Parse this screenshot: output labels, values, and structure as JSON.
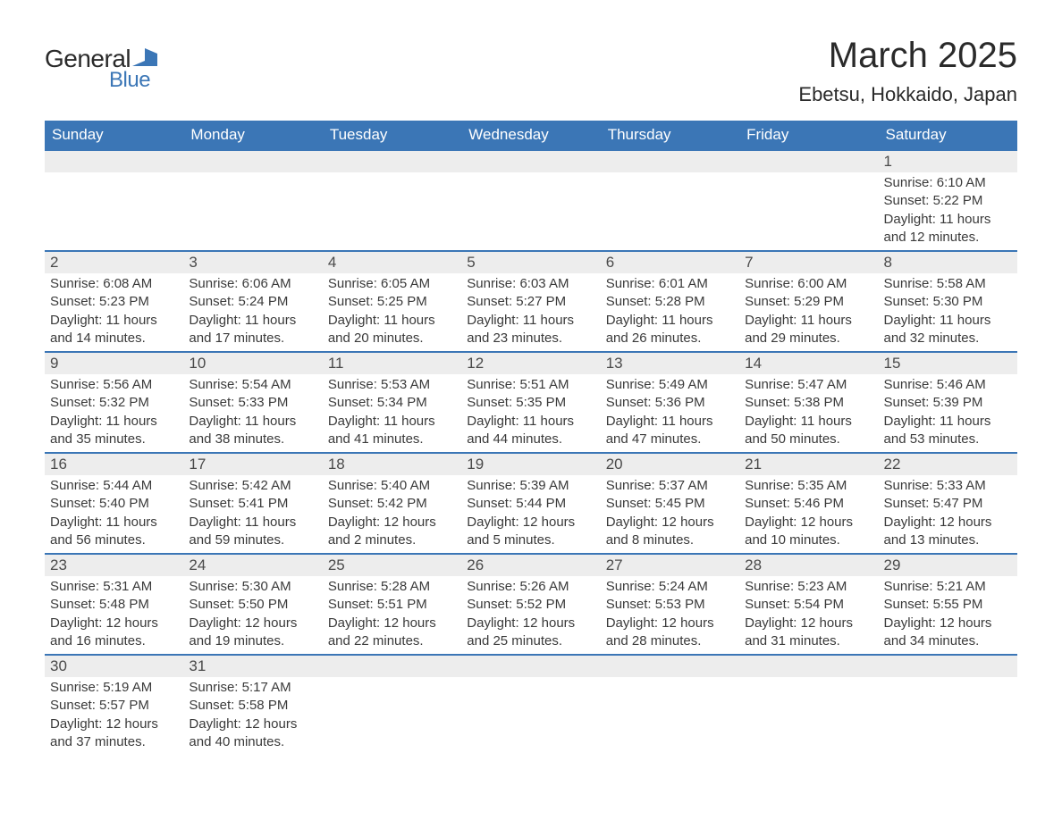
{
  "brand": {
    "text_general": "General",
    "text_blue": "Blue",
    "icon_color": "#3b76b6"
  },
  "title": "March 2025",
  "location": "Ebetsu, Hokkaido, Japan",
  "colors": {
    "header_bg": "#3b76b6",
    "header_fg": "#ffffff",
    "daynum_bg": "#ededed",
    "row_border": "#3b76b6",
    "text": "#333333"
  },
  "columns": [
    "Sunday",
    "Monday",
    "Tuesday",
    "Wednesday",
    "Thursday",
    "Friday",
    "Saturday"
  ],
  "weeks": [
    [
      null,
      null,
      null,
      null,
      null,
      null,
      {
        "day": "1",
        "sunrise": "Sunrise: 6:10 AM",
        "sunset": "Sunset: 5:22 PM",
        "dl1": "Daylight: 11 hours",
        "dl2": "and 12 minutes."
      }
    ],
    [
      {
        "day": "2",
        "sunrise": "Sunrise: 6:08 AM",
        "sunset": "Sunset: 5:23 PM",
        "dl1": "Daylight: 11 hours",
        "dl2": "and 14 minutes."
      },
      {
        "day": "3",
        "sunrise": "Sunrise: 6:06 AM",
        "sunset": "Sunset: 5:24 PM",
        "dl1": "Daylight: 11 hours",
        "dl2": "and 17 minutes."
      },
      {
        "day": "4",
        "sunrise": "Sunrise: 6:05 AM",
        "sunset": "Sunset: 5:25 PM",
        "dl1": "Daylight: 11 hours",
        "dl2": "and 20 minutes."
      },
      {
        "day": "5",
        "sunrise": "Sunrise: 6:03 AM",
        "sunset": "Sunset: 5:27 PM",
        "dl1": "Daylight: 11 hours",
        "dl2": "and 23 minutes."
      },
      {
        "day": "6",
        "sunrise": "Sunrise: 6:01 AM",
        "sunset": "Sunset: 5:28 PM",
        "dl1": "Daylight: 11 hours",
        "dl2": "and 26 minutes."
      },
      {
        "day": "7",
        "sunrise": "Sunrise: 6:00 AM",
        "sunset": "Sunset: 5:29 PM",
        "dl1": "Daylight: 11 hours",
        "dl2": "and 29 minutes."
      },
      {
        "day": "8",
        "sunrise": "Sunrise: 5:58 AM",
        "sunset": "Sunset: 5:30 PM",
        "dl1": "Daylight: 11 hours",
        "dl2": "and 32 minutes."
      }
    ],
    [
      {
        "day": "9",
        "sunrise": "Sunrise: 5:56 AM",
        "sunset": "Sunset: 5:32 PM",
        "dl1": "Daylight: 11 hours",
        "dl2": "and 35 minutes."
      },
      {
        "day": "10",
        "sunrise": "Sunrise: 5:54 AM",
        "sunset": "Sunset: 5:33 PM",
        "dl1": "Daylight: 11 hours",
        "dl2": "and 38 minutes."
      },
      {
        "day": "11",
        "sunrise": "Sunrise: 5:53 AM",
        "sunset": "Sunset: 5:34 PM",
        "dl1": "Daylight: 11 hours",
        "dl2": "and 41 minutes."
      },
      {
        "day": "12",
        "sunrise": "Sunrise: 5:51 AM",
        "sunset": "Sunset: 5:35 PM",
        "dl1": "Daylight: 11 hours",
        "dl2": "and 44 minutes."
      },
      {
        "day": "13",
        "sunrise": "Sunrise: 5:49 AM",
        "sunset": "Sunset: 5:36 PM",
        "dl1": "Daylight: 11 hours",
        "dl2": "and 47 minutes."
      },
      {
        "day": "14",
        "sunrise": "Sunrise: 5:47 AM",
        "sunset": "Sunset: 5:38 PM",
        "dl1": "Daylight: 11 hours",
        "dl2": "and 50 minutes."
      },
      {
        "day": "15",
        "sunrise": "Sunrise: 5:46 AM",
        "sunset": "Sunset: 5:39 PM",
        "dl1": "Daylight: 11 hours",
        "dl2": "and 53 minutes."
      }
    ],
    [
      {
        "day": "16",
        "sunrise": "Sunrise: 5:44 AM",
        "sunset": "Sunset: 5:40 PM",
        "dl1": "Daylight: 11 hours",
        "dl2": "and 56 minutes."
      },
      {
        "day": "17",
        "sunrise": "Sunrise: 5:42 AM",
        "sunset": "Sunset: 5:41 PM",
        "dl1": "Daylight: 11 hours",
        "dl2": "and 59 minutes."
      },
      {
        "day": "18",
        "sunrise": "Sunrise: 5:40 AM",
        "sunset": "Sunset: 5:42 PM",
        "dl1": "Daylight: 12 hours",
        "dl2": "and 2 minutes."
      },
      {
        "day": "19",
        "sunrise": "Sunrise: 5:39 AM",
        "sunset": "Sunset: 5:44 PM",
        "dl1": "Daylight: 12 hours",
        "dl2": "and 5 minutes."
      },
      {
        "day": "20",
        "sunrise": "Sunrise: 5:37 AM",
        "sunset": "Sunset: 5:45 PM",
        "dl1": "Daylight: 12 hours",
        "dl2": "and 8 minutes."
      },
      {
        "day": "21",
        "sunrise": "Sunrise: 5:35 AM",
        "sunset": "Sunset: 5:46 PM",
        "dl1": "Daylight: 12 hours",
        "dl2": "and 10 minutes."
      },
      {
        "day": "22",
        "sunrise": "Sunrise: 5:33 AM",
        "sunset": "Sunset: 5:47 PM",
        "dl1": "Daylight: 12 hours",
        "dl2": "and 13 minutes."
      }
    ],
    [
      {
        "day": "23",
        "sunrise": "Sunrise: 5:31 AM",
        "sunset": "Sunset: 5:48 PM",
        "dl1": "Daylight: 12 hours",
        "dl2": "and 16 minutes."
      },
      {
        "day": "24",
        "sunrise": "Sunrise: 5:30 AM",
        "sunset": "Sunset: 5:50 PM",
        "dl1": "Daylight: 12 hours",
        "dl2": "and 19 minutes."
      },
      {
        "day": "25",
        "sunrise": "Sunrise: 5:28 AM",
        "sunset": "Sunset: 5:51 PM",
        "dl1": "Daylight: 12 hours",
        "dl2": "and 22 minutes."
      },
      {
        "day": "26",
        "sunrise": "Sunrise: 5:26 AM",
        "sunset": "Sunset: 5:52 PM",
        "dl1": "Daylight: 12 hours",
        "dl2": "and 25 minutes."
      },
      {
        "day": "27",
        "sunrise": "Sunrise: 5:24 AM",
        "sunset": "Sunset: 5:53 PM",
        "dl1": "Daylight: 12 hours",
        "dl2": "and 28 minutes."
      },
      {
        "day": "28",
        "sunrise": "Sunrise: 5:23 AM",
        "sunset": "Sunset: 5:54 PM",
        "dl1": "Daylight: 12 hours",
        "dl2": "and 31 minutes."
      },
      {
        "day": "29",
        "sunrise": "Sunrise: 5:21 AM",
        "sunset": "Sunset: 5:55 PM",
        "dl1": "Daylight: 12 hours",
        "dl2": "and 34 minutes."
      }
    ],
    [
      {
        "day": "30",
        "sunrise": "Sunrise: 5:19 AM",
        "sunset": "Sunset: 5:57 PM",
        "dl1": "Daylight: 12 hours",
        "dl2": "and 37 minutes."
      },
      {
        "day": "31",
        "sunrise": "Sunrise: 5:17 AM",
        "sunset": "Sunset: 5:58 PM",
        "dl1": "Daylight: 12 hours",
        "dl2": "and 40 minutes."
      },
      null,
      null,
      null,
      null,
      null
    ]
  ]
}
